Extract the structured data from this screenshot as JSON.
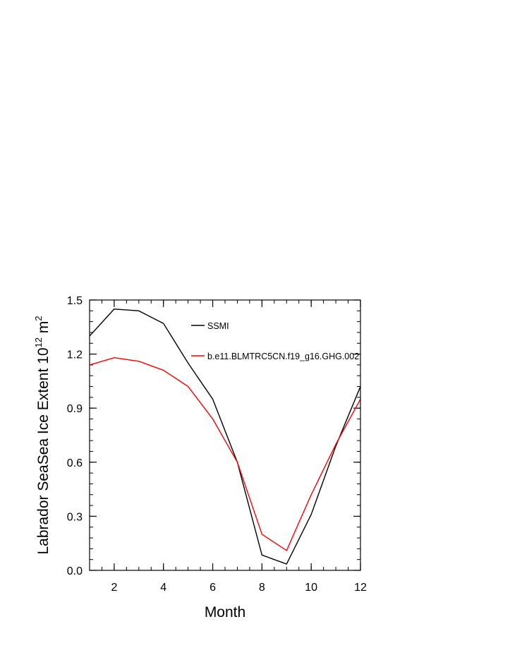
{
  "chart_data": {
    "type": "line",
    "title": "",
    "xlabel": "Month",
    "ylabel": "Labrador SeaSea Ice Extent 10",
    "ylabel_exponent": "12",
    "ylabel_unit": " m",
    "ylabel_unit_exponent": "2",
    "xlim": [
      1,
      12
    ],
    "ylim": [
      0.0,
      1.5
    ],
    "x_ticks": [
      2,
      4,
      6,
      8,
      10,
      12
    ],
    "y_ticks": [
      0.0,
      0.3,
      0.6,
      0.9,
      1.2,
      1.5
    ],
    "x_tick_labels": [
      "2",
      "4",
      "6",
      "8",
      "10",
      "12"
    ],
    "y_tick_labels": [
      "0.0",
      "0.3",
      "0.6",
      "0.9",
      "1.2",
      "1.5"
    ],
    "grid": false,
    "legend_position": "top-right-inside",
    "x": [
      1,
      2,
      3,
      4,
      5,
      6,
      7,
      8,
      9,
      10,
      11,
      12
    ],
    "series": [
      {
        "name": "SSMI",
        "color": "#000000",
        "values": [
          1.3,
          1.45,
          1.44,
          1.37,
          1.15,
          0.95,
          0.6,
          0.085,
          0.035,
          0.31,
          0.69,
          1.02
        ]
      },
      {
        "name": "b.e11.BLMTRC5CN.f19_g16.GHG.002",
        "color": "#ff0000",
        "values": [
          1.14,
          1.18,
          1.16,
          1.11,
          1.02,
          0.84,
          0.6,
          0.2,
          0.11,
          0.42,
          0.7,
          0.95
        ]
      }
    ]
  }
}
